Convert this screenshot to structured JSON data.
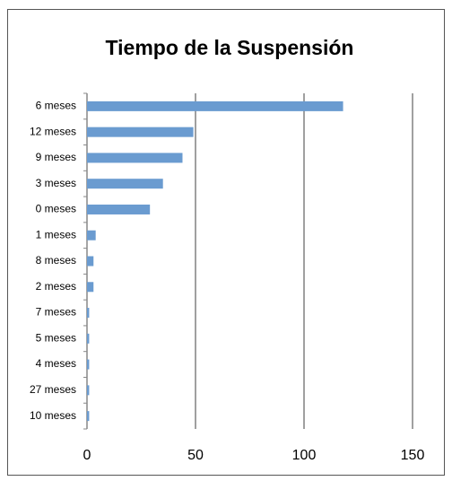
{
  "chart_data": {
    "type": "hbar",
    "title": "Tiempo de la Suspensión",
    "categories": [
      "6 meses",
      "12 meses",
      "9 meses",
      "3 meses",
      "0 meses",
      "1 meses",
      "8 meses",
      "2 meses",
      "7 meses",
      "5 meses",
      "4 meses",
      "27 meses",
      "10 meses"
    ],
    "values": [
      118,
      49,
      44,
      35,
      29,
      4,
      3,
      3,
      1,
      1,
      1,
      1,
      1
    ],
    "color": "#6a9bd0",
    "xlim": [
      0,
      150
    ],
    "xticks": [
      0,
      50,
      100,
      150
    ],
    "grid": true
  }
}
